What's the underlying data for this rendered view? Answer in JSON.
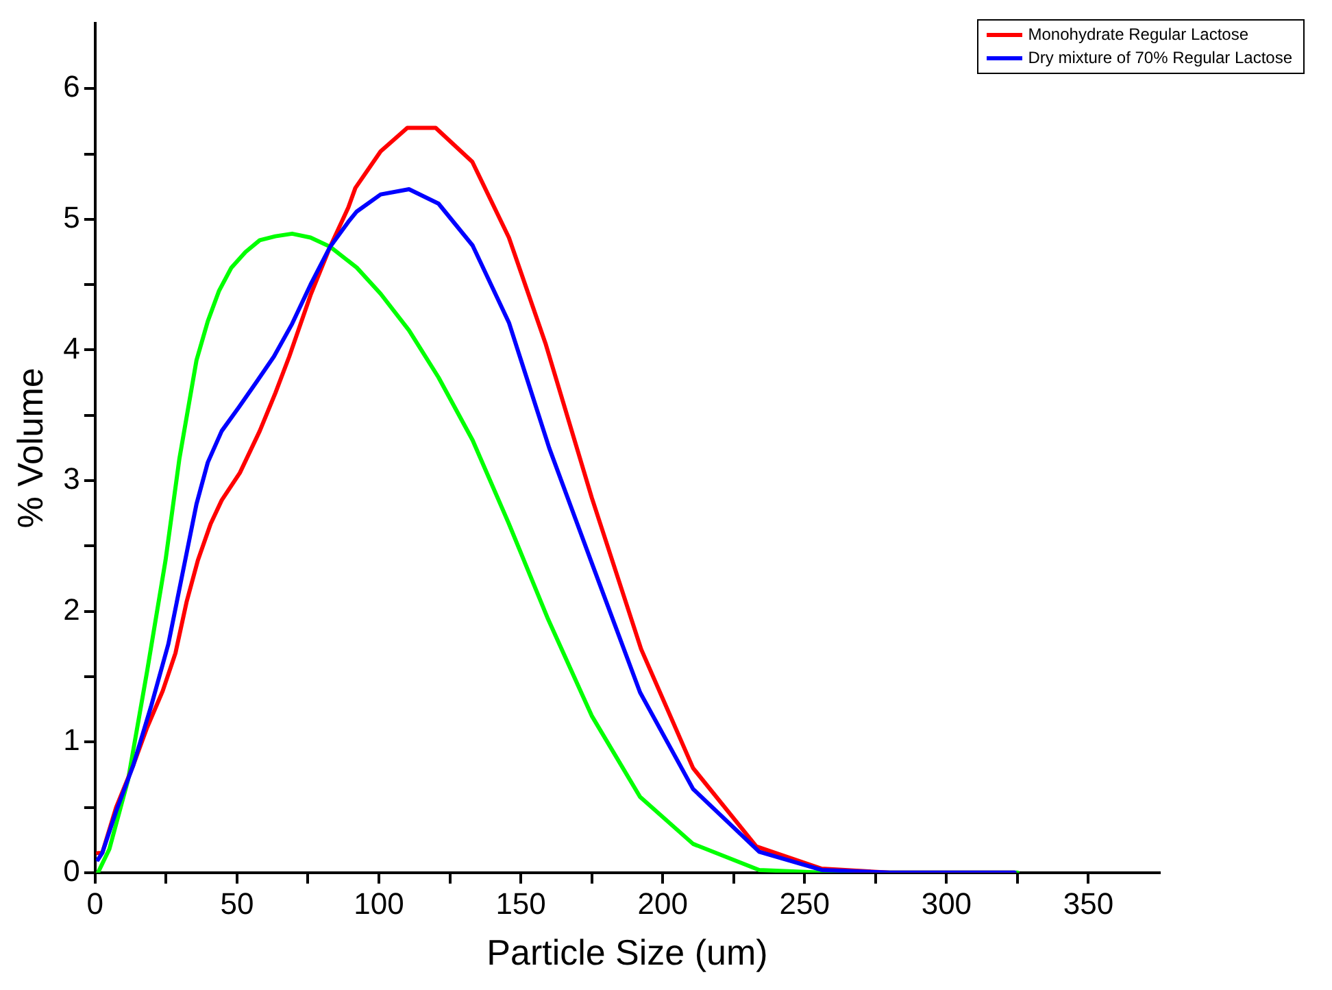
{
  "chart_data": {
    "type": "line",
    "xlabel": "Particle Size (um)",
    "ylabel": "% Volume",
    "xlim": [
      0,
      375
    ],
    "ylim": [
      0,
      6.5
    ],
    "xticks": [
      0,
      {
        "value": 25,
        "label": null
      },
      50,
      {
        "value": 75,
        "label": null
      },
      100,
      {
        "value": 125,
        "label": null
      },
      150,
      {
        "value": 175,
        "label": null
      },
      200,
      {
        "value": 225,
        "label": null
      },
      250,
      {
        "value": 275,
        "label": null
      },
      300,
      {
        "value": 325,
        "label": null
      },
      350
    ],
    "yticks": [
      0,
      {
        "value": 0.5,
        "label": null
      },
      1,
      {
        "value": 1.5,
        "label": null
      },
      2,
      {
        "value": 2.5,
        "label": null
      },
      3,
      {
        "value": 3.5,
        "label": null
      },
      4,
      {
        "value": 4.5,
        "label": null
      },
      5,
      {
        "value": 5.5,
        "label": null
      },
      6
    ],
    "grid": false,
    "legend": "top right",
    "marker": "none",
    "line_style": "solid",
    "series": [
      {
        "color": "#00ff00",
        "x": [
          1,
          5,
          11.6,
          18.3,
          24.8,
          29.7,
          35.7,
          39.7,
          43.6,
          48,
          53,
          58,
          63.5,
          69.4,
          75.9,
          82.8,
          92.2,
          100.6,
          110.6,
          121,
          133,
          145.8,
          159.6,
          175,
          192,
          210.7,
          234,
          256,
          280,
          300,
          325
        ],
        "values": [
          0,
          0.18,
          0.71,
          1.54,
          2.39,
          3.17,
          3.92,
          4.22,
          4.45,
          4.63,
          4.75,
          4.84,
          4.87,
          4.89,
          4.86,
          4.79,
          4.63,
          4.43,
          4.15,
          3.79,
          3.31,
          2.67,
          1.94,
          1.2,
          0.58,
          0.22,
          0.02,
          0,
          0,
          0,
          0
        ]
      },
      {
        "name": "Monohydrate Regular Lactose",
        "color": "#ff0000",
        "x": [
          1,
          2.5,
          7.4,
          13.4,
          18.3,
          23.8,
          28.3,
          32.2,
          36.2,
          40.7,
          44.6,
          51,
          58,
          63.5,
          68.4,
          75.9,
          82.8,
          89.2,
          91.7,
          100.6,
          110,
          120,
          132.9,
          145.8,
          158.7,
          175,
          192.4,
          210.7,
          233,
          256,
          280,
          300,
          324
        ],
        "values": [
          0.15,
          0.15,
          0.5,
          0.82,
          1.11,
          1.39,
          1.68,
          2.07,
          2.39,
          2.67,
          2.85,
          3.06,
          3.38,
          3.67,
          3.95,
          4.42,
          4.79,
          5.09,
          5.24,
          5.52,
          5.7,
          5.7,
          5.44,
          4.86,
          4.05,
          2.87,
          1.71,
          0.8,
          0.2,
          0.03,
          0,
          0,
          0
        ]
      },
      {
        "name": "Dry mixture of 70% Regular Lactose",
        "color": "#0000ff",
        "x": [
          1,
          2.5,
          7.4,
          13.4,
          19.8,
          25.8,
          30.7,
          35.7,
          39.7,
          44.6,
          50.6,
          57,
          63,
          69.4,
          75.9,
          82.8,
          89.2,
          92.2,
          100.6,
          110.6,
          121,
          133,
          145.8,
          160,
          175,
          192,
          210.7,
          234,
          256,
          280,
          300,
          324
        ],
        "values": [
          0.1,
          0.15,
          0.47,
          0.82,
          1.28,
          1.75,
          2.28,
          2.82,
          3.14,
          3.38,
          3.56,
          3.76,
          3.95,
          4.2,
          4.5,
          4.79,
          4.98,
          5.06,
          5.19,
          5.23,
          5.12,
          4.8,
          4.21,
          3.25,
          2.37,
          1.38,
          0.64,
          0.16,
          0.02,
          0,
          0,
          0
        ]
      }
    ]
  }
}
